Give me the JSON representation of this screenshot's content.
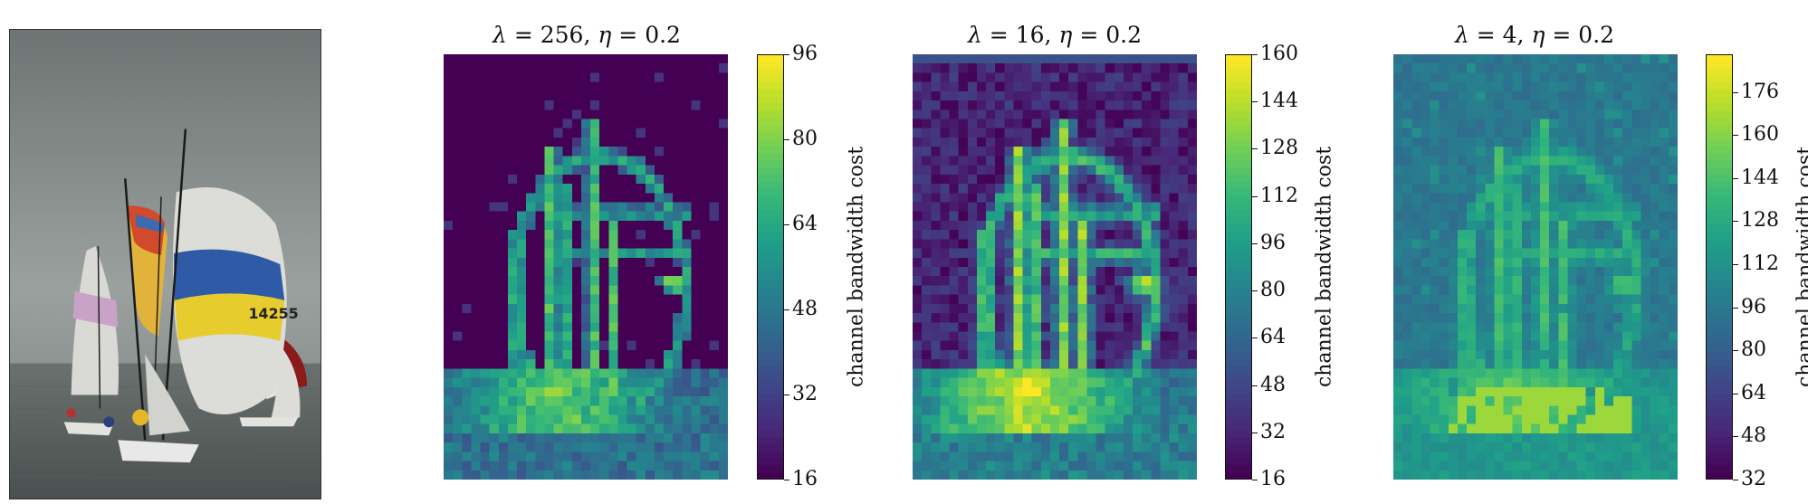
{
  "photo": {
    "alt": "sailboats with spinnakers",
    "sail_number": "14255"
  },
  "chart_data": [
    {
      "type": "heatmap",
      "title_parts": {
        "lambda_sym": "λ",
        "lambda_val": "256",
        "eta_sym": "η",
        "eta_val": "0.2"
      },
      "colorbar": {
        "label": "channel bandwidth cost",
        "range": [
          16,
          96
        ],
        "ticks": [
          "96",
          "80",
          "64",
          "48",
          "32",
          "16"
        ],
        "tick_values": [
          96,
          80,
          64,
          48,
          32,
          16
        ]
      },
      "colormap": "viridis",
      "grid": {
        "rows": 46,
        "cols": 31
      },
      "seed": 11
    },
    {
      "type": "heatmap",
      "title_parts": {
        "lambda_sym": "λ",
        "lambda_val": "16",
        "eta_sym": "η",
        "eta_val": "0.2"
      },
      "colorbar": {
        "label": "channel bandwidth cost",
        "range": [
          16,
          160
        ],
        "ticks": [
          "160",
          "144",
          "128",
          "112",
          "96",
          "80",
          "64",
          "48",
          "32",
          "16"
        ],
        "tick_values": [
          160,
          144,
          128,
          112,
          96,
          80,
          64,
          48,
          32,
          16
        ]
      },
      "colormap": "viridis",
      "grid": {
        "rows": 46,
        "cols": 31
      },
      "seed": 23
    },
    {
      "type": "heatmap",
      "title_parts": {
        "lambda_sym": "λ",
        "lambda_val": "4",
        "eta_sym": "η",
        "eta_val": "0.2"
      },
      "colorbar": {
        "label": "channel bandwidth cost",
        "range": [
          32,
          190
        ],
        "ticks": [
          "176",
          "160",
          "144",
          "128",
          "112",
          "96",
          "80",
          "64",
          "48",
          "32"
        ],
        "tick_values": [
          176,
          160,
          144,
          128,
          112,
          96,
          80,
          64,
          48,
          32
        ]
      },
      "colormap": "viridis",
      "grid": {
        "rows": 46,
        "cols": 31
      },
      "seed": 37
    }
  ]
}
